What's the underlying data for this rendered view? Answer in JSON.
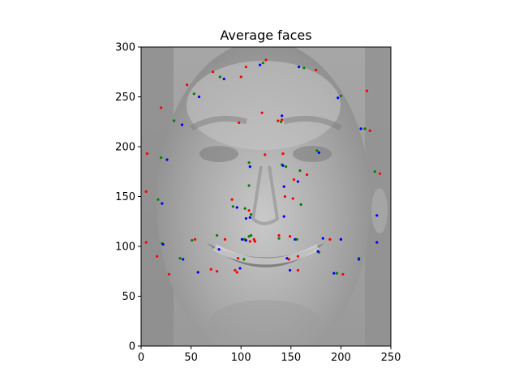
{
  "chart_data": {
    "type": "scatter",
    "title": "Average faces",
    "xlabel": "",
    "ylabel": "",
    "xlim": [
      0,
      250
    ],
    "ylim": [
      0,
      300
    ],
    "x_ticks": [
      "0",
      "50",
      "100",
      "150",
      "200",
      "250"
    ],
    "y_ticks": [
      "0",
      "50",
      "100",
      "150",
      "200",
      "250",
      "300"
    ],
    "grid": false,
    "legend": "none",
    "background_image": "grayscale-average-face",
    "series": [
      {
        "color": "#ff0000",
        "x": [
          6,
          5,
          5,
          20,
          46,
          72,
          125,
          175,
          226,
          229,
          239,
          202,
          157,
          96,
          16,
          28,
          54,
          84,
          109,
          124,
          142,
          153,
          166,
          141,
          113,
          104,
          138,
          94,
          114,
          97,
          91,
          108,
          152,
          157,
          149,
          76,
          100,
          98,
          137,
          144,
          105,
          121,
          148,
          70,
          189
        ],
        "y": [
          193,
          155,
          104,
          239,
          262,
          275,
          287,
          277,
          256,
          216,
          173,
          72,
          76,
          74,
          90,
          72,
          107,
          107,
          105,
          192,
          193,
          167,
          172,
          227,
          107,
          107,
          111,
          76,
          105,
          88,
          147,
          136,
          148,
          90,
          110,
          75,
          270,
          224,
          226,
          150,
          280,
          234,
          87,
          77,
          107
        ]
      },
      {
        "color": "#008000",
        "x": [
          20,
          17,
          21,
          33,
          53,
          79,
          122,
          163,
          200,
          224,
          234,
          218,
          196,
          103,
          76,
          39,
          51,
          108,
          110,
          141,
          145,
          159,
          176,
          140,
          108,
          104,
          138,
          92,
          108,
          103,
          110,
          156,
          160,
          178,
          218,
          200
        ],
        "y": [
          189,
          147,
          103,
          226,
          253,
          270,
          284,
          279,
          251,
          218,
          175,
          88,
          73,
          107,
          111,
          88,
          106,
          110,
          132,
          182,
          180,
          176,
          196,
          225,
          184,
          138,
          108,
          140,
          161,
          87,
          111,
          107,
          142,
          94,
          88,
          107
        ],
        "__note": null
      },
      {
        "color": "#0000ff",
        "x": [
          26,
          21,
          22,
          41,
          58,
          83,
          119,
          158,
          197,
          220,
          236,
          218,
          193,
          101,
          78,
          42,
          57,
          105,
          109,
          142,
          143,
          157,
          178,
          141,
          109,
          96,
          105,
          99,
          143,
          146,
          149,
          154,
          177,
          200,
          236,
          182
        ],
        "y": [
          187,
          143,
          102,
          222,
          250,
          268,
          282,
          280,
          249,
          218,
          131,
          87,
          73,
          107,
          97,
          87,
          74,
          106,
          129,
          181,
          160,
          165,
          194,
          231,
          180,
          139,
          128,
          78,
          130,
          88,
          76,
          107,
          95,
          107,
          104,
          108
        ]
      }
    ]
  }
}
